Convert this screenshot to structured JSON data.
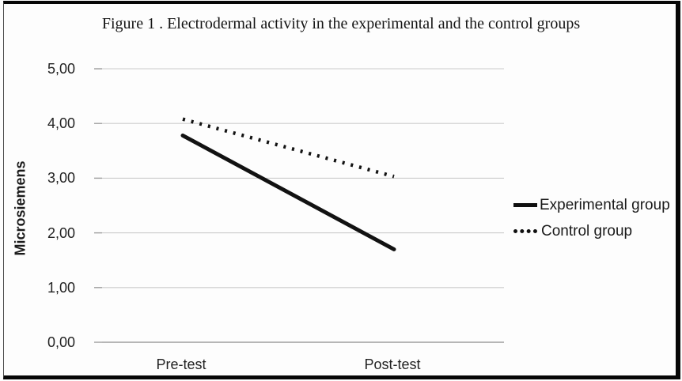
{
  "chart_data": {
    "type": "line",
    "title": "Figure 1 . Electrodermal activity in the experimental and the control groups",
    "categories": [
      "Pre-test",
      "Post-test"
    ],
    "series": [
      {
        "name": "Experimental group",
        "style": "solid",
        "values": [
          3.78,
          1.7
        ]
      },
      {
        "name": "Control group",
        "style": "dotted",
        "values": [
          4.08,
          3.03
        ]
      }
    ],
    "xlabel": "",
    "ylabel": "Microsiemens",
    "ylim": [
      0,
      5
    ],
    "ytick_step": 1,
    "ytick_labels": [
      "0,00",
      "1,00",
      "2,00",
      "3,00",
      "4,00",
      "5,00"
    ],
    "decimal_separator": ",",
    "grid": true,
    "legend_position": "right",
    "colors": {
      "line": "#121212",
      "grid": "#cbcbcb",
      "axis": "#9e9e9e",
      "text": "#1e1e1e",
      "background": "#fdfdfd",
      "frame": "#060606"
    }
  }
}
